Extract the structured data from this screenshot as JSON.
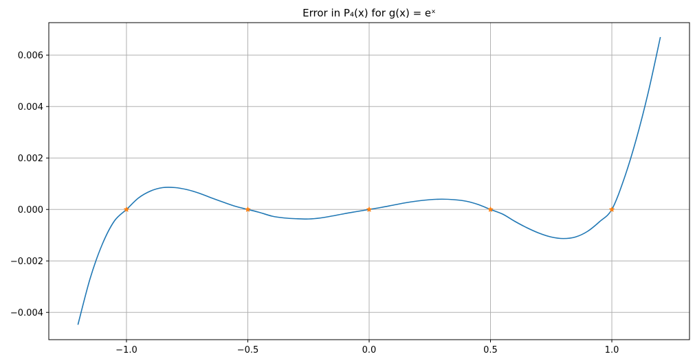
{
  "chart_data": {
    "type": "line",
    "title": "Error in P₄(x) for g(x) = eˣ",
    "xlabel": "",
    "ylabel": "",
    "xlim": [
      -1.2,
      1.2
    ],
    "ylim": [
      -0.0045,
      0.0067
    ],
    "grid": true,
    "xticks": [
      -1.0,
      -0.5,
      0.0,
      0.5,
      1.0
    ],
    "xtick_labels": [
      "−1.0",
      "−0.5",
      "0.0",
      "0.5",
      "1.0"
    ],
    "yticks": [
      -0.004,
      -0.002,
      0.0,
      0.002,
      0.004,
      0.006
    ],
    "ytick_labels": [
      "−0.004",
      "−0.002",
      "0.000",
      "0.002",
      "0.004",
      "0.006"
    ],
    "series": [
      {
        "color": "#1f77b4",
        "x": [
          -1.2,
          -1.15,
          -1.1,
          -1.05,
          -1.0,
          -0.95,
          -0.9,
          -0.85,
          -0.8,
          -0.75,
          -0.7,
          -0.65,
          -0.6,
          -0.55,
          -0.5,
          -0.45,
          -0.4,
          -0.35,
          -0.3,
          -0.25,
          -0.2,
          -0.15,
          -0.1,
          -0.05,
          0.0,
          0.05,
          0.1,
          0.15,
          0.2,
          0.25,
          0.3,
          0.35,
          0.4,
          0.45,
          0.5,
          0.55,
          0.6,
          0.65,
          0.7,
          0.75,
          0.8,
          0.85,
          0.9,
          0.95,
          1.0,
          1.05,
          1.1,
          1.15,
          1.2
        ],
        "y": [
          -0.00448,
          -0.00269,
          -0.00136,
          -0.00045,
          0.0,
          0.00045,
          0.00072,
          0.00085,
          0.00085,
          0.00077,
          0.00063,
          0.00045,
          0.00028,
          0.00012,
          0.0,
          -0.00012,
          -0.00026,
          -0.00033,
          -0.00036,
          -0.00037,
          -0.00033,
          -0.00025,
          -0.00016,
          -8e-05,
          0.0,
          8e-05,
          0.00017,
          0.00026,
          0.00033,
          0.00038,
          0.0004,
          0.00038,
          0.00032,
          0.00019,
          0.0,
          -0.00018,
          -0.00046,
          -0.00071,
          -0.00092,
          -0.00107,
          -0.00113,
          -0.00107,
          -0.00085,
          -0.00047,
          0.0,
          0.00118,
          0.00271,
          0.00455,
          0.0067
        ]
      },
      {
        "color": "#ff7f0e",
        "marker": "star",
        "x": [
          -1.0,
          -0.5,
          0.0,
          0.5,
          1.0
        ],
        "y": [
          0.0,
          0.0,
          0.0,
          0.0,
          0.0
        ]
      }
    ]
  }
}
